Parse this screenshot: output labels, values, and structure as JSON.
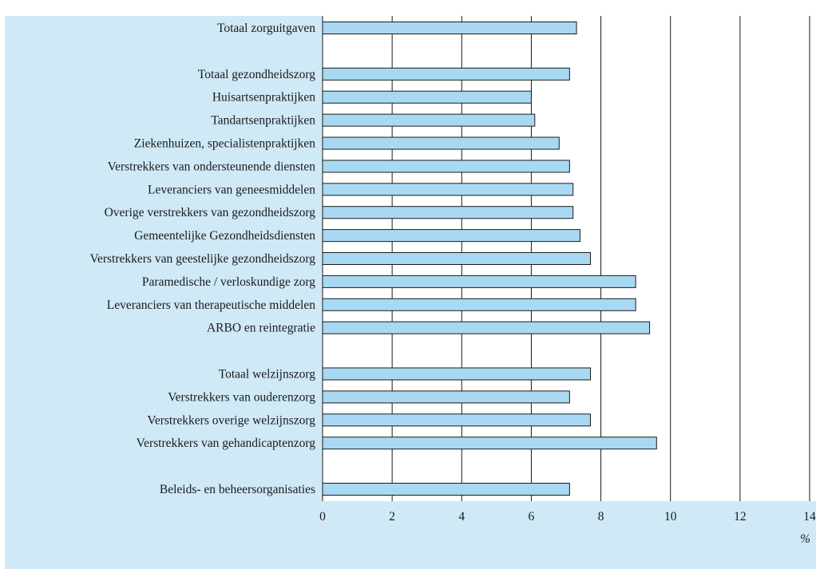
{
  "chart_data": {
    "type": "bar",
    "orientation": "horizontal",
    "categories": [
      "Totaal zorguitgaven",
      "",
      "Totaal gezondheidszorg",
      "Huisartsenpraktijken",
      "Tandartsenpraktijken",
      "Ziekenhuizen, specialistenpraktijken",
      "Verstrekkers van ondersteunende diensten",
      "Leveranciers van geneesmiddelen",
      "Overige verstrekkers van gezondheidszorg",
      "Gemeentelijke Gezondheidsdiensten",
      "Verstrekkers van geestelijke gezondheidszorg",
      "Paramedische / verloskundige zorg",
      "Leveranciers van therapeutische middelen",
      "ARBO en reintegratie",
      "",
      "Totaal welzijnszorg",
      "Verstrekkers van ouderenzorg",
      "Verstrekkers overige welzijnszorg",
      "Verstrekkers van gehandicaptenzorg",
      "",
      "Beleids- en beheersorganisaties"
    ],
    "values": [
      7.3,
      null,
      7.1,
      6.0,
      6.1,
      6.8,
      7.1,
      7.2,
      7.2,
      7.4,
      7.7,
      9.0,
      9.0,
      9.4,
      null,
      7.7,
      7.1,
      7.7,
      9.6,
      null,
      7.1
    ],
    "xlim": [
      0,
      14
    ],
    "x_ticks": [
      0,
      2,
      4,
      6,
      8,
      10,
      12,
      14
    ],
    "x_unit": "%",
    "grid": true,
    "colors": {
      "bar_fill": "#a9d9f2",
      "bar_stroke": "#1a1a1a",
      "frame_bg": "#cfe9f6",
      "plot_bg": "#ffffff"
    }
  }
}
